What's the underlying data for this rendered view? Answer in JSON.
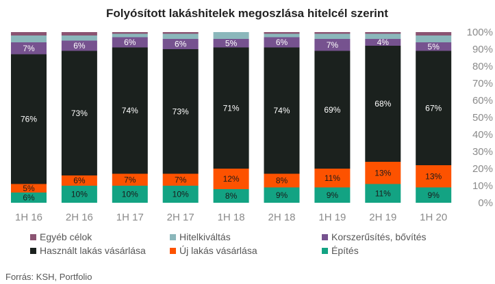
{
  "chart_data": {
    "type": "bar",
    "stacked": true,
    "title": "Folyósított lakáshitelek megoszlása hitelcél szerint",
    "categories": [
      "1H 16",
      "2H 16",
      "1H 17",
      "2H 17",
      "1H 18",
      "2H 18",
      "1H 19",
      "2H 19",
      "1H 20"
    ],
    "ylim": [
      0,
      100
    ],
    "y_ticks": [
      "0%",
      "10%",
      "20%",
      "30%",
      "40%",
      "50%",
      "60%",
      "70%",
      "80%",
      "90%",
      "100%"
    ],
    "y_axis_side": "right",
    "grid": false,
    "legend_position": "bottom",
    "series": [
      {
        "name": "Építés",
        "color": "#13a383",
        "label_color": "#1a1a1a",
        "values": [
          6,
          10,
          10,
          10,
          8,
          9,
          9,
          11,
          9
        ],
        "labels": [
          "6%",
          "10%",
          "10%",
          "10%",
          "8%",
          "9%",
          "9%",
          "11%",
          "9%"
        ]
      },
      {
        "name": "Új lakás vásárlása",
        "color": "#fd5200",
        "label_color": "#1a1a1a",
        "values": [
          5,
          6,
          7,
          7,
          12,
          8,
          11,
          13,
          13
        ],
        "labels": [
          "5%",
          "6%",
          "7%",
          "7%",
          "12%",
          "8%",
          "11%",
          "13%",
          "13%"
        ]
      },
      {
        "name": "Használt lakás vásárlása",
        "color": "#1b211e",
        "label_color": "#ffffff",
        "values": [
          76,
          73,
          74,
          73,
          71,
          74,
          69,
          68,
          67
        ],
        "labels": [
          "76%",
          "73%",
          "74%",
          "73%",
          "71%",
          "74%",
          "69%",
          "68%",
          "67%"
        ]
      },
      {
        "name": "Korszerűsítés, bővítés",
        "color": "#76528f",
        "label_color": "#ffffff",
        "values": [
          7,
          6,
          6,
          6,
          5,
          6,
          7,
          4,
          5
        ],
        "labels": [
          "7%",
          "6%",
          "6%",
          "6%",
          "5%",
          "6%",
          "7%",
          "4%",
          "5%"
        ]
      },
      {
        "name": "Hitelkiváltás",
        "color": "#8bb7bb",
        "label_color": "#1a1a1a",
        "values": [
          4,
          3,
          2,
          3,
          4,
          2,
          3,
          3,
          4
        ],
        "labels": [
          "",
          "",
          "",
          "",
          "",
          "",
          "",
          "",
          ""
        ]
      },
      {
        "name": "Egyéb célok",
        "color": "#8b5472",
        "label_color": "#1a1a1a",
        "values": [
          2,
          2,
          1,
          1,
          0,
          1,
          1,
          1,
          2
        ],
        "labels": [
          "",
          "",
          "",
          "",
          "",
          "",
          "",
          "",
          ""
        ]
      }
    ],
    "legend_order": [
      "Egyéb célok",
      "Hitelkiváltás",
      "Korszerűsítés, bővítés",
      "Használt lakás vásárlása",
      "Új lakás vásárlása",
      "Építés"
    ]
  },
  "source": "Forrás: KSH, Portfolio"
}
